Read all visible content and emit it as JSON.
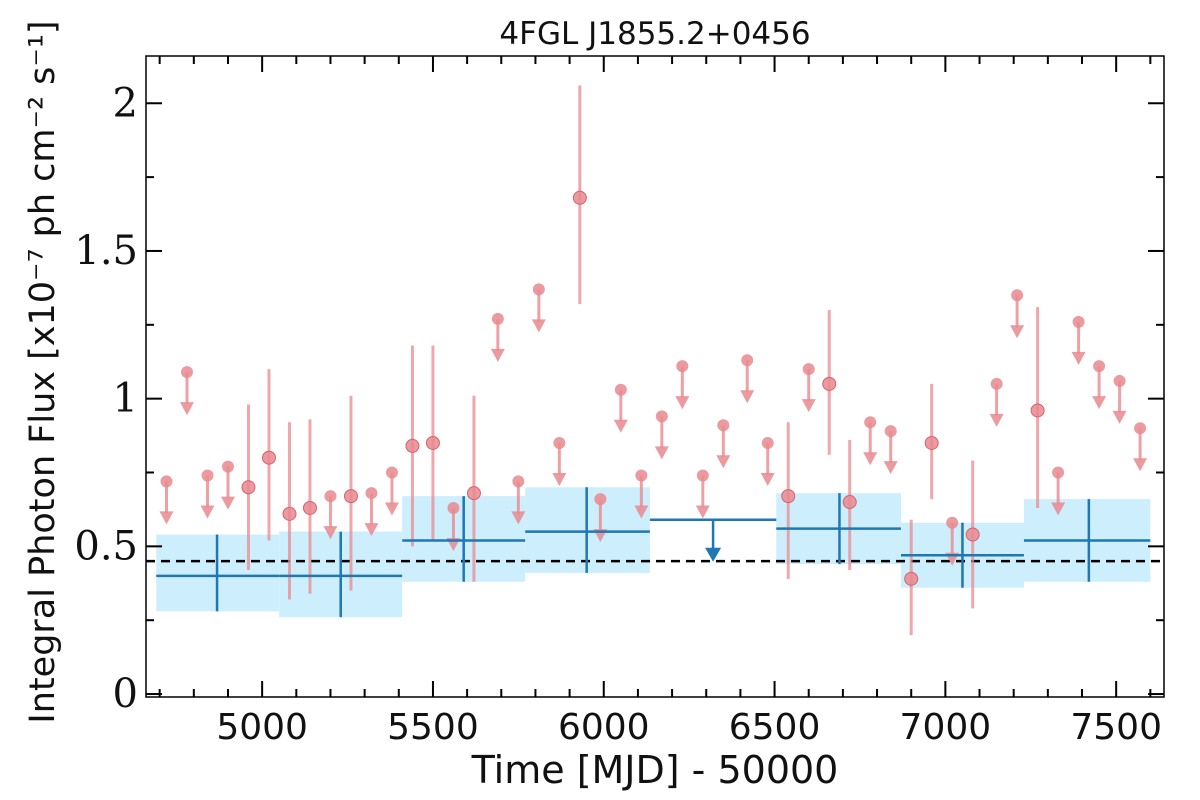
{
  "chart_data": {
    "type": "scatter",
    "title": "4FGL J1855.2+0456",
    "xlabel": "Time [MJD] - 50000",
    "ylabel": "Integral Photon Flux [x10⁻⁷ ph cm⁻² s⁻¹]",
    "xlim": [
      4660,
      7640
    ],
    "ylim": [
      -0.01,
      2.16
    ],
    "xticks": [
      5000,
      5500,
      6000,
      6500,
      7000,
      7500
    ],
    "xtick_labels": [
      "5000",
      "5500",
      "6000",
      "6500",
      "7000",
      "7500"
    ],
    "yticks": [
      0,
      0.5,
      1,
      1.5,
      2
    ],
    "ytick_labels": [
      "0",
      "0.5",
      "1",
      "1.5",
      "2"
    ],
    "grid": false,
    "legend": "none",
    "reference_line": {
      "y": 0.45,
      "style": "dashed"
    },
    "colors": {
      "short_bins": "#e8898f",
      "long_bins": "#1f77b4",
      "band": "#cdeefc",
      "reference": "#000000"
    },
    "series": [
      {
        "binning": "short",
        "detections": [
          {
            "x": 4960,
            "y": 0.7,
            "ylo": 0.42,
            "yhi": 0.98
          },
          {
            "x": 5020,
            "y": 0.8,
            "ylo": 0.52,
            "yhi": 1.1
          },
          {
            "x": 5080,
            "y": 0.61,
            "ylo": 0.32,
            "yhi": 0.92
          },
          {
            "x": 5140,
            "y": 0.63,
            "ylo": 0.34,
            "yhi": 0.93
          },
          {
            "x": 5260,
            "y": 0.67,
            "ylo": 0.35,
            "yhi": 1.01
          },
          {
            "x": 5440,
            "y": 0.84,
            "ylo": 0.5,
            "yhi": 1.18
          },
          {
            "x": 5500,
            "y": 0.85,
            "ylo": 0.52,
            "yhi": 1.18
          },
          {
            "x": 5620,
            "y": 0.68,
            "ylo": 0.38,
            "yhi": 1.01
          },
          {
            "x": 5930,
            "y": 1.68,
            "ylo": 1.32,
            "yhi": 2.06
          },
          {
            "x": 6540,
            "y": 0.67,
            "ylo": 0.39,
            "yhi": 0.92
          },
          {
            "x": 6660,
            "y": 1.05,
            "ylo": 0.81,
            "yhi": 1.3
          },
          {
            "x": 6720,
            "y": 0.65,
            "ylo": 0.42,
            "yhi": 0.86
          },
          {
            "x": 6900,
            "y": 0.39,
            "ylo": 0.2,
            "yhi": 0.59
          },
          {
            "x": 6960,
            "y": 0.85,
            "ylo": 0.66,
            "yhi": 1.05
          },
          {
            "x": 7080,
            "y": 0.54,
            "ylo": 0.29,
            "yhi": 0.79
          },
          {
            "x": 7270,
            "y": 0.96,
            "ylo": 0.63,
            "yhi": 1.31
          }
        ],
        "upper_limits": [
          {
            "x": 4720,
            "y": 0.72
          },
          {
            "x": 4780,
            "y": 1.09
          },
          {
            "x": 4840,
            "y": 0.74
          },
          {
            "x": 4900,
            "y": 0.77
          },
          {
            "x": 5200,
            "y": 0.67
          },
          {
            "x": 5320,
            "y": 0.68
          },
          {
            "x": 5380,
            "y": 0.75
          },
          {
            "x": 5560,
            "y": 0.63
          },
          {
            "x": 5690,
            "y": 1.27
          },
          {
            "x": 5750,
            "y": 0.72
          },
          {
            "x": 5810,
            "y": 1.37
          },
          {
            "x": 5870,
            "y": 0.85
          },
          {
            "x": 5990,
            "y": 0.66
          },
          {
            "x": 6050,
            "y": 1.03
          },
          {
            "x": 6110,
            "y": 0.74
          },
          {
            "x": 6170,
            "y": 0.94
          },
          {
            "x": 6230,
            "y": 1.11
          },
          {
            "x": 6290,
            "y": 0.74
          },
          {
            "x": 6350,
            "y": 0.91
          },
          {
            "x": 6420,
            "y": 1.13
          },
          {
            "x": 6480,
            "y": 0.85
          },
          {
            "x": 6600,
            "y": 1.1
          },
          {
            "x": 6780,
            "y": 0.92
          },
          {
            "x": 6840,
            "y": 0.89
          },
          {
            "x": 7020,
            "y": 0.58
          },
          {
            "x": 7150,
            "y": 1.05
          },
          {
            "x": 7210,
            "y": 1.35
          },
          {
            "x": 7330,
            "y": 0.75
          },
          {
            "x": 7390,
            "y": 1.26
          },
          {
            "x": 7450,
            "y": 1.11
          },
          {
            "x": 7510,
            "y": 1.06
          },
          {
            "x": 7570,
            "y": 0.9
          }
        ]
      },
      {
        "binning": "long",
        "detections": [
          {
            "x": 4868,
            "xlo": 4690,
            "xhi": 5050,
            "y": 0.4,
            "ylo": 0.28,
            "yhi": 0.54
          },
          {
            "x": 5230,
            "xlo": 5050,
            "xhi": 5410,
            "y": 0.4,
            "ylo": 0.26,
            "yhi": 0.55
          },
          {
            "x": 5590,
            "xlo": 5410,
            "xhi": 5770,
            "y": 0.52,
            "ylo": 0.38,
            "yhi": 0.67
          },
          {
            "x": 5950,
            "xlo": 5770,
            "xhi": 6135,
            "y": 0.55,
            "ylo": 0.41,
            "yhi": 0.7
          },
          {
            "x": 6690,
            "xlo": 6505,
            "xhi": 6870,
            "y": 0.56,
            "ylo": 0.44,
            "yhi": 0.68
          },
          {
            "x": 7050,
            "xlo": 6870,
            "xhi": 7230,
            "y": 0.47,
            "ylo": 0.36,
            "yhi": 0.58
          },
          {
            "x": 7420,
            "xlo": 7230,
            "xhi": 7600,
            "y": 0.52,
            "ylo": 0.38,
            "yhi": 0.66
          }
        ],
        "upper_limits": [
          {
            "x": 6320,
            "xlo": 6135,
            "xhi": 6505,
            "y": 0.59
          }
        ]
      }
    ]
  }
}
